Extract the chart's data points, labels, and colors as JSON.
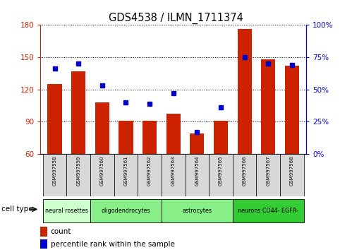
{
  "title": "GDS4538 / ILMN_1711374",
  "samples": [
    "GSM997558",
    "GSM997559",
    "GSM997560",
    "GSM997561",
    "GSM997562",
    "GSM997563",
    "GSM997564",
    "GSM997565",
    "GSM997566",
    "GSM997567",
    "GSM997568"
  ],
  "counts": [
    125,
    137,
    108,
    91,
    91,
    97,
    79,
    91,
    176,
    148,
    142
  ],
  "percentiles": [
    66,
    70,
    53,
    40,
    39,
    47,
    17,
    36,
    75,
    70,
    69
  ],
  "cell_types": [
    {
      "label": "neural rosettes",
      "start": 0,
      "end": 1,
      "color": "#ccffcc"
    },
    {
      "label": "oligodendrocytes",
      "start": 2,
      "end": 4,
      "color": "#88ee88"
    },
    {
      "label": "astrocytes",
      "start": 5,
      "end": 7,
      "color": "#88ee88"
    },
    {
      "label": "neurons CD44- EGFR-",
      "start": 8,
      "end": 10,
      "color": "#33cc33"
    }
  ],
  "ylim_left": [
    60,
    180
  ],
  "ylim_right": [
    0,
    100
  ],
  "yticks_left": [
    60,
    90,
    120,
    150,
    180
  ],
  "yticks_right": [
    0,
    25,
    50,
    75,
    100
  ],
  "bar_color": "#cc2200",
  "dot_color": "#0000cc",
  "background_color": "#ffffff"
}
